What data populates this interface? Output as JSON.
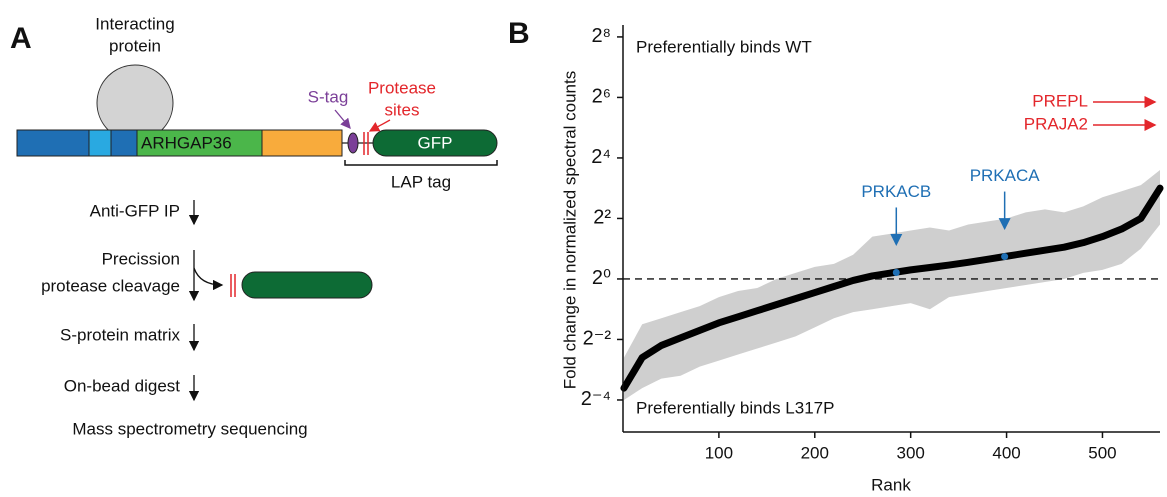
{
  "panel_a": {
    "label": "A",
    "interacting": [
      "Interacting",
      "protein"
    ],
    "domain": "ARHGAP36",
    "stag": "S-tag",
    "protease": [
      "Protease",
      "sites"
    ],
    "gfp": "GFP",
    "lap": "LAP tag",
    "steps": [
      "Anti-GFP IP",
      "Precission",
      "protease cleavage",
      "S-protein matrix",
      "On-bead digest",
      "Mass spectrometry sequencing"
    ]
  },
  "chart_data": {
    "type": "line",
    "panel_label": "B",
    "ylabel": "Fold change in normalized spectral counts",
    "xlabel": "Rank",
    "x": [
      1,
      20,
      40,
      60,
      80,
      100,
      120,
      140,
      160,
      180,
      200,
      220,
      240,
      260,
      280,
      300,
      320,
      340,
      360,
      380,
      400,
      420,
      440,
      460,
      480,
      500,
      520,
      540,
      560
    ],
    "values": [
      0.082,
      0.165,
      0.218,
      0.259,
      0.308,
      0.366,
      0.42,
      0.483,
      0.555,
      0.637,
      0.732,
      0.841,
      0.966,
      1.072,
      1.149,
      1.231,
      1.301,
      1.375,
      1.464,
      1.569,
      1.682,
      1.803,
      1.932,
      2.071,
      2.297,
      2.639,
      3.138,
      4,
      8
    ],
    "color": "#000000",
    "band": {
      "color": "#cfcfcf",
      "high": [
        0.165,
        0.354,
        0.406,
        0.467,
        0.536,
        0.66,
        0.758,
        0.812,
        1,
        1.149,
        1.32,
        1.414,
        1.741,
        2.639,
        2.828,
        3.031,
        3.249,
        3.031,
        3.482,
        3.732,
        4,
        4.595,
        4.925,
        4.595,
        5.278,
        6.498,
        7.464,
        8.574,
        12.126
      ],
      "low": [
        0.0625,
        0.082,
        0.102,
        0.109,
        0.134,
        0.154,
        0.177,
        0.203,
        0.233,
        0.268,
        0.33,
        0.406,
        0.467,
        0.5,
        0.536,
        0.574,
        0.5,
        0.66,
        0.707,
        0.758,
        0.812,
        0.871,
        0.933,
        1,
        1.149,
        1.231,
        1.414,
        2,
        3.482
      ]
    },
    "reference_line": 1,
    "xlim": [
      0,
      560
    ],
    "xticks": [
      100,
      200,
      300,
      400,
      500
    ],
    "ylim": [
      0.03,
      300
    ],
    "log_scale": "y",
    "log_base": 2,
    "yticks": [
      {
        "value": 0.0625,
        "label": "2⁻⁴"
      },
      {
        "value": 0.25,
        "label": "2⁻²"
      },
      {
        "value": 1,
        "label": "2⁰"
      },
      {
        "value": 4,
        "label": "2²"
      },
      {
        "value": 16,
        "label": "2⁴"
      },
      {
        "value": 64,
        "label": "2⁶"
      },
      {
        "value": 256,
        "label": "2⁸"
      }
    ],
    "annotations": [
      "Preferentially binds WT",
      "Preferentially binds L317P"
    ],
    "highlights": {
      "color": "#1f6fb4",
      "labels": [
        "PRKACB",
        "PRKACA"
      ],
      "x": [
        285,
        398
      ],
      "values": [
        1.16,
        1.67
      ]
    },
    "offscale": {
      "color": "#e3262b",
      "labels": [
        "PREPL",
        "PRAJA2"
      ]
    }
  }
}
